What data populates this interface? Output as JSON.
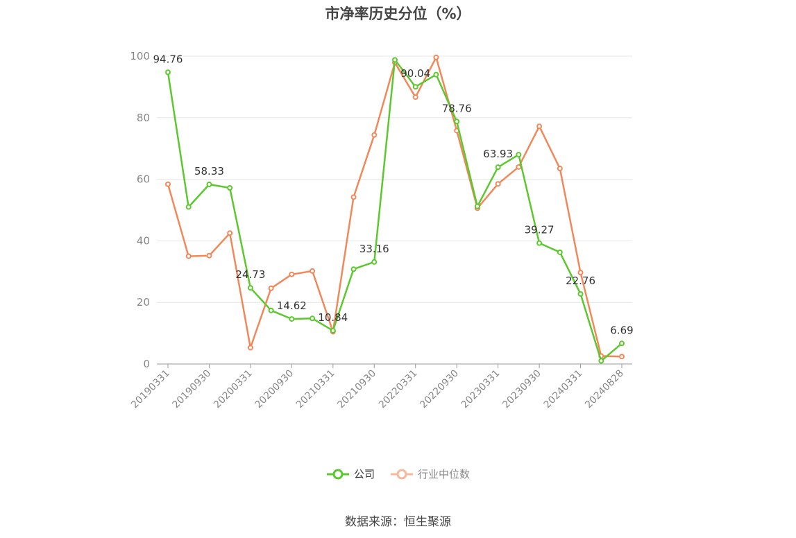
{
  "title": "市净率历史分位（%）",
  "source": "数据来源：恒生聚源",
  "legend": {
    "company": "公司",
    "industry": "行业中位数"
  },
  "colors": {
    "company": "#5cc82e",
    "industry": "#f0885a",
    "industry_legend": "#f7b89c",
    "axis": "#999999",
    "grid": "#e6e6e6"
  },
  "chart_data": {
    "type": "line",
    "title": "市净率历史分位（%）",
    "ylim": [
      0,
      100
    ],
    "yticks": [
      0,
      20,
      40,
      60,
      80,
      100
    ],
    "x_tick_labels": [
      "20190331",
      "20190930",
      "20200331",
      "20200930",
      "20210331",
      "20210930",
      "20220331",
      "20220930",
      "20230331",
      "20230930",
      "20240331",
      "20240828"
    ],
    "x": [
      "20190331",
      "20190630",
      "20190930",
      "20191231",
      "20200331",
      "20200630",
      "20200930",
      "20201231",
      "20210331",
      "20210630",
      "20210930",
      "20211231",
      "20220331",
      "20220630",
      "20220930",
      "20221231",
      "20230331",
      "20230630",
      "20230930",
      "20231231",
      "20240331",
      "20240630",
      "20240828"
    ],
    "series": [
      {
        "name": "公司",
        "values": [
          94.76,
          51,
          58.33,
          57.2,
          24.73,
          17.4,
          14.62,
          14.8,
          10.84,
          30.8,
          33.16,
          98.8,
          90.04,
          94,
          78.76,
          51.2,
          63.93,
          68,
          39.27,
          36.3,
          22.76,
          1,
          6.69
        ],
        "labels": {
          "0": "94.76",
          "2": "58.33",
          "4": "24.73",
          "6": "14.62",
          "8": "10.84",
          "10": "33.16",
          "12": "90.04",
          "14": "78.76",
          "16": "63.93",
          "18": "39.27",
          "20": "22.76",
          "22": "6.69"
        }
      },
      {
        "name": "行业中位数",
        "values": [
          58.4,
          35,
          35.2,
          42.5,
          5.3,
          24.6,
          29.1,
          30.2,
          10.5,
          54.2,
          74.4,
          97.9,
          86.7,
          99.6,
          75.8,
          50.6,
          58.5,
          64,
          77.2,
          63.5,
          29.7,
          2.6,
          2.4
        ]
      }
    ],
    "grid": true,
    "legend_position": "bottom"
  }
}
